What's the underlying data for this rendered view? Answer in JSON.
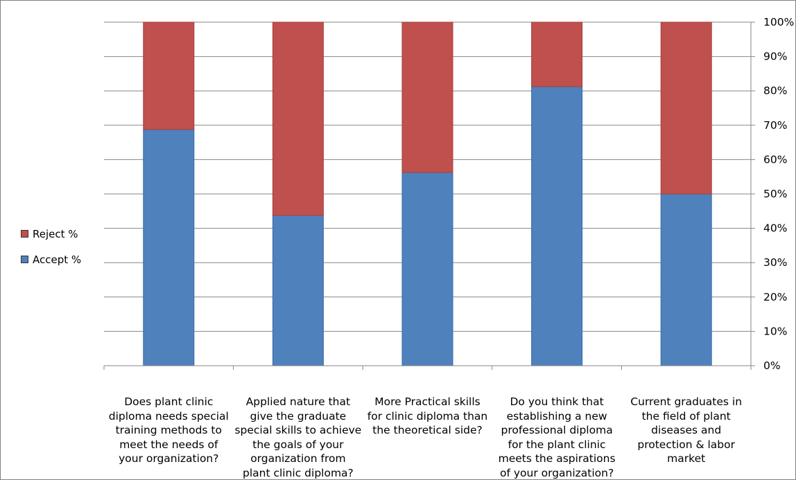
{
  "chart_data": {
    "type": "bar",
    "stacked": true,
    "categories": [
      "Does plant clinic diploma needs special training methods to meet the needs of your organization?",
      "Applied nature that give the graduate special skills to achieve the goals of your organization from plant clinic diploma?",
      "More Practical skills for clinic diploma than the theoretical side?",
      "Do you think that establishing a new professional diploma for the plant clinic meets the aspirations of your organization?",
      "Current graduates in the field of plant diseases and protection & labor market"
    ],
    "category_lines": [
      [
        "Does plant clinic",
        "diploma needs special",
        "training methods to",
        "meet the needs of",
        "your organization?"
      ],
      [
        "Applied nature that",
        "give the graduate",
        "special skills to achieve",
        "the goals of your",
        "organization from",
        "plant clinic diploma?"
      ],
      [
        "More Practical skills",
        "for clinic diploma than",
        "the theoretical side?"
      ],
      [
        "Do you think that",
        "establishing a new",
        "professional diploma",
        "for the plant clinic",
        "meets the aspirations",
        "of your organization?"
      ],
      [
        "Current graduates in",
        "the field of plant",
        "diseases and",
        "protection & labor",
        "market"
      ]
    ],
    "series": [
      {
        "name": "Accept %",
        "values": [
          68.75,
          43.75,
          56.25,
          81.25,
          50.0
        ],
        "color": "#4F81BD"
      },
      {
        "name": "Reject %",
        "values": [
          31.25,
          56.25,
          43.75,
          18.75,
          50.0
        ],
        "color": "#C0504D"
      }
    ],
    "legend": {
      "position": "left",
      "items": [
        {
          "label": "Reject %",
          "color": "#C0504D"
        },
        {
          "label": "Accept %",
          "color": "#4F81BD"
        }
      ]
    },
    "yaxis": {
      "position": "right",
      "ticks": [
        "0%",
        "10%",
        "20%",
        "30%",
        "40%",
        "50%",
        "60%",
        "70%",
        "80%",
        "90%",
        "100%"
      ],
      "ylim": [
        0,
        100
      ]
    },
    "grid": true
  }
}
